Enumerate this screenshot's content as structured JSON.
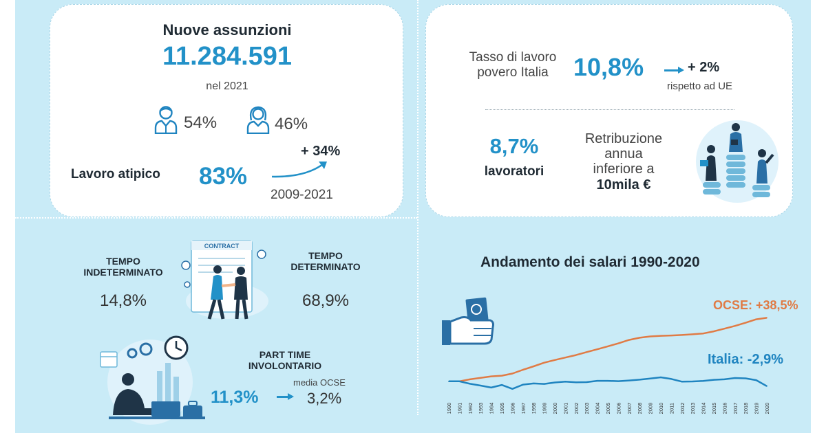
{
  "assunzioni": {
    "title": "Nuove assunzioni",
    "total": "11.284.591",
    "year": "nel 2021",
    "male_pct": "54%",
    "female_pct": "46%",
    "atipico_label": "Lavoro atipico",
    "atipico_pct": "83%",
    "atipico_change": "+ 34%",
    "atipico_period": "2009-2021"
  },
  "povero": {
    "label_line1": "Tasso di lavoro",
    "label_line2": "povero Italia",
    "rate": "10,8%",
    "change": "+ 2%",
    "change_note": "rispetto ad UE",
    "workers_pct": "8,7%",
    "workers_label": "lavoratori",
    "retrib_line1": "Retribuzione",
    "retrib_line2": "annua",
    "retrib_line3": "inferiore a",
    "retrib_line4": "10mila €"
  },
  "contratti": {
    "contract_word": "CONTRACT",
    "indet_line1": "TEMPO",
    "indet_line2": "INDETERMINATO",
    "indet_pct": "14,8%",
    "det_line1": "TEMPO",
    "det_line2": "DETERMINATO",
    "det_pct": "68,9%"
  },
  "parttime": {
    "label_line1": "PART TIME",
    "label_line2": "INVOLONTARIO",
    "pct": "11,3%",
    "ocse_label": "media OCSE",
    "ocse_pct": "3,2%"
  },
  "colors": {
    "background": "#c9ebf7",
    "accent_blue": "#2291c8",
    "ocse_orange": "#e07b45",
    "italia_blue": "#1f84c0",
    "dark_navy": "#1f3447"
  },
  "chart_data": {
    "type": "line",
    "title": "Andamento dei salari 1990-2020",
    "xlabel": "",
    "ylabel": "",
    "x": [
      "1990",
      "1991",
      "1992",
      "1993",
      "1994",
      "1995",
      "1996",
      "1997",
      "1998",
      "1999",
      "2000",
      "2001",
      "2002",
      "2003",
      "2004",
      "2005",
      "2006",
      "2007",
      "2008",
      "2009",
      "2010",
      "2011",
      "2012",
      "2013",
      "2014",
      "2015",
      "2016",
      "2017",
      "2018",
      "2019",
      "2020"
    ],
    "ylim": [
      -8,
      42
    ],
    "grid": false,
    "legend": "inline-end-labels",
    "series": [
      {
        "name": "OCSE: +38,5%",
        "color": "#e07b45",
        "values": [
          0,
          0,
          1.2,
          2.1,
          3.0,
          3.4,
          4.7,
          7.0,
          9.1,
          11.3,
          12.9,
          14.4,
          15.9,
          17.7,
          19.4,
          21.2,
          23.0,
          25.1,
          26.4,
          27.2,
          27.6,
          27.8,
          28.1,
          28.5,
          29.0,
          30.3,
          31.9,
          33.6,
          35.5,
          37.6,
          38.5
        ]
      },
      {
        "name": "Italia: -2,9%",
        "color": "#1f84c0",
        "values": [
          0,
          0,
          -1.5,
          -2.6,
          -3.8,
          -2.2,
          -4.6,
          -2.0,
          -1.3,
          -1.6,
          -0.7,
          -0.2,
          -0.6,
          -0.5,
          0.3,
          0.3,
          0.1,
          0.5,
          1.0,
          1.7,
          2.4,
          1.4,
          -0.2,
          -0.1,
          0.2,
          0.9,
          1.2,
          2.0,
          1.8,
          0.7,
          -2.9
        ]
      }
    ]
  }
}
